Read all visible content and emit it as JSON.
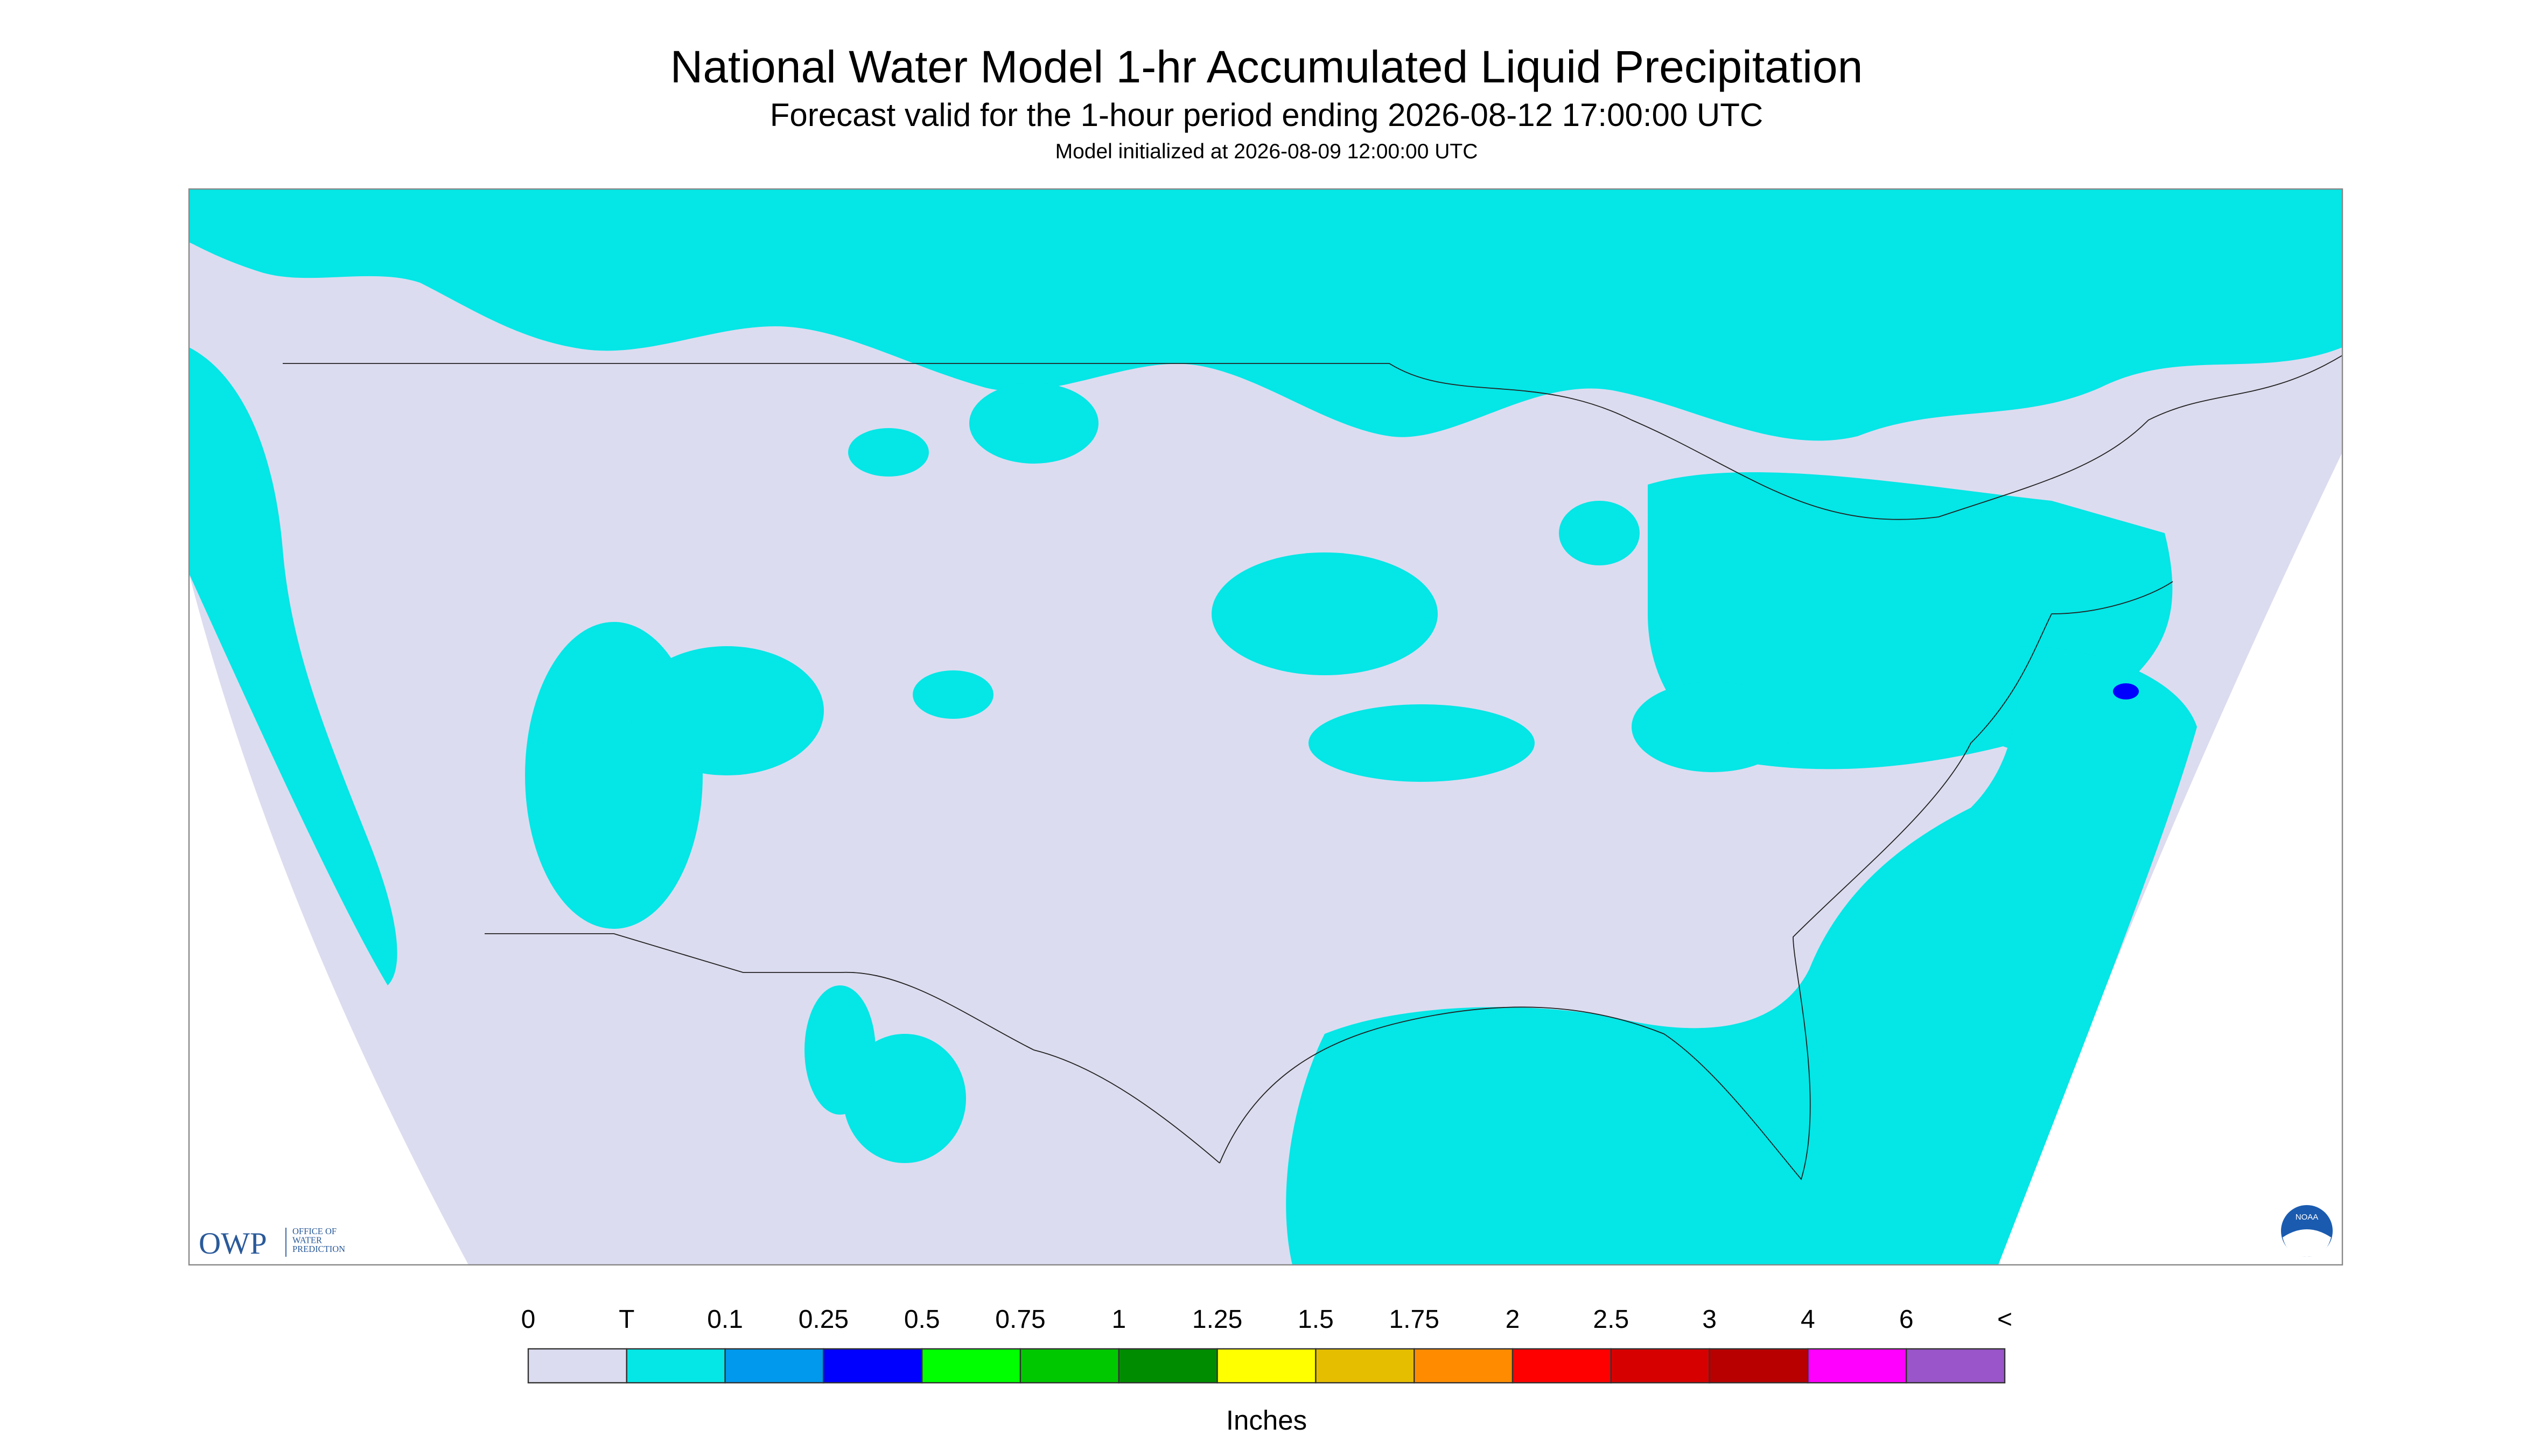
{
  "header": {
    "title": "National Water Model 1-hr Accumulated Liquid Precipitation",
    "subtitle": "Forecast valid for the 1-hour period ending 2026-08-12 17:00:00 UTC",
    "init": "Model initialized at 2026-08-09 12:00:00 UTC"
  },
  "legend": {
    "labels": [
      "0",
      "T",
      "0.1",
      "0.25",
      "0.5",
      "0.75",
      "1",
      "1.25",
      "1.5",
      "1.75",
      "2",
      "2.5",
      "3",
      "4",
      "6",
      "<"
    ],
    "colors": [
      "#dcdcf0",
      "#05e6e6",
      "#0099ee",
      "#0000ff",
      "#00ff00",
      "#00c800",
      "#008c00",
      "#ffff00",
      "#e6be00",
      "#ff8c00",
      "#ff0000",
      "#d70000",
      "#b90000",
      "#ff00ff",
      "#9955c9"
    ],
    "unit": "Inches"
  },
  "logos": {
    "owp": "OWP",
    "owp_lines": [
      "OFFICE OF",
      "WATER",
      "PREDICTION"
    ],
    "noaa": "NOAA"
  }
}
